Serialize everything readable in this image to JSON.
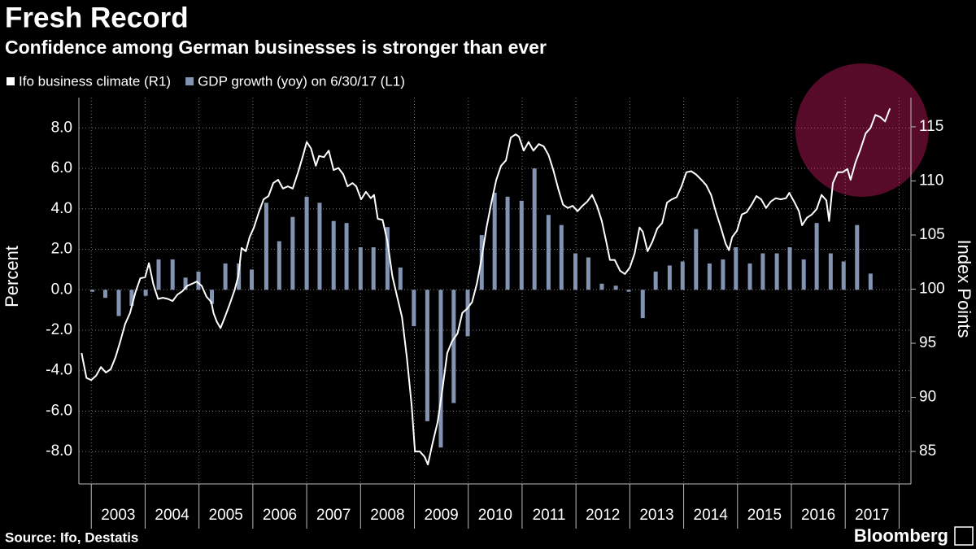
{
  "chart_data": {
    "type": "combo",
    "title": "Fresh Record",
    "subtitle": "Confidence among German businesses is stronger than ever",
    "ylabel": "Percent",
    "y2label": "Index Points",
    "source": "Source: Ifo, Destatis",
    "brand": "Bloomberg",
    "categories": [
      2003,
      2004,
      2005,
      2006,
      2007,
      2008,
      2009,
      2010,
      2011,
      2012,
      2013,
      2014,
      2015,
      2016,
      2017
    ],
    "xlim": [
      2002.77,
      2018.22
    ],
    "xticks": [
      2003,
      2004,
      2005,
      2006,
      2007,
      2008,
      2009,
      2010,
      2011,
      2012,
      2013,
      2014,
      2015,
      2016,
      2017,
      2018
    ],
    "ylim": [
      -9.6,
      9.5
    ],
    "yticks": [
      {
        "value": -8,
        "label": "-8.0"
      },
      {
        "value": -6,
        "label": "-6.0"
      },
      {
        "value": -4,
        "label": "-4.0"
      },
      {
        "value": -2,
        "label": "-2.0"
      },
      {
        "value": 0,
        "label": "0.0"
      },
      {
        "value": 2,
        "label": "2.0"
      },
      {
        "value": 4,
        "label": "4.0"
      },
      {
        "value": 6,
        "label": "6.0"
      },
      {
        "value": 8,
        "label": "8.0"
      }
    ],
    "y2lim": [
      82.0,
      117.7
    ],
    "y2ticks": [
      85,
      90,
      95,
      100,
      105,
      110,
      115
    ],
    "grid": true,
    "series": [
      {
        "name": "Ifo business climate (R1)",
        "type": "line",
        "axis": "y2",
        "color": "#ffffff",
        "x": [
          2002.82,
          2002.91,
          2003.0,
          2003.09,
          2003.18,
          2003.27,
          2003.36,
          2003.45,
          2003.54,
          2003.63,
          2003.72,
          2003.82,
          2003.91,
          2004.0,
          2004.07,
          2004.15,
          2004.24,
          2004.33,
          2004.42,
          2004.51,
          2004.6,
          2004.69,
          2004.78,
          2004.87,
          2004.96,
          2005.05,
          2005.14,
          2005.23,
          2005.27,
          2005.33,
          2005.4,
          2005.48,
          2005.57,
          2005.66,
          2005.73,
          2005.79,
          2005.87,
          2005.94,
          2006.02,
          2006.11,
          2006.2,
          2006.29,
          2006.38,
          2006.47,
          2006.56,
          2006.65,
          2006.74,
          2006.84,
          2006.93,
          2007.0,
          2007.08,
          2007.17,
          2007.23,
          2007.32,
          2007.41,
          2007.5,
          2007.59,
          2007.68,
          2007.76,
          2007.85,
          2007.92,
          2008.01,
          2008.1,
          2008.19,
          2008.25,
          2008.32,
          2008.41,
          2008.5,
          2008.59,
          2008.68,
          2008.77,
          2008.86,
          2008.95,
          2009.01,
          2009.1,
          2009.19,
          2009.25,
          2009.34,
          2009.43,
          2009.52,
          2009.61,
          2009.7,
          2009.8,
          2009.89,
          2009.98,
          2010.07,
          2010.16,
          2010.25,
          2010.34,
          2010.43,
          2010.52,
          2010.61,
          2010.7,
          2010.79,
          2010.88,
          2010.94,
          2011.03,
          2011.12,
          2011.21,
          2011.31,
          2011.4,
          2011.49,
          2011.58,
          2011.67,
          2011.76,
          2011.85,
          2011.94,
          2012.03,
          2012.12,
          2012.21,
          2012.3,
          2012.39,
          2012.48,
          2012.57,
          2012.63,
          2012.72,
          2012.82,
          2012.91,
          2013.0,
          2013.09,
          2013.18,
          2013.24,
          2013.33,
          2013.42,
          2013.51,
          2013.6,
          2013.69,
          2013.78,
          2013.87,
          2013.96,
          2014.05,
          2014.14,
          2014.23,
          2014.33,
          2014.42,
          2014.51,
          2014.6,
          2014.69,
          2014.78,
          2014.84,
          2014.9,
          2014.99,
          2015.08,
          2015.17,
          2015.26,
          2015.35,
          2015.44,
          2015.53,
          2015.62,
          2015.71,
          2015.8,
          2015.9,
          2015.96,
          2016.05,
          2016.14,
          2016.2,
          2016.29,
          2016.38,
          2016.47,
          2016.56,
          2016.65,
          2016.7,
          2016.77,
          2016.86,
          2016.95,
          2017.04,
          2017.1,
          2017.19,
          2017.28,
          2017.38,
          2017.47,
          2017.56,
          2017.65,
          2017.74,
          2017.83
        ],
        "values": [
          94.1,
          91.8,
          91.6,
          92.0,
          92.8,
          92.3,
          92.6,
          93.7,
          95.2,
          96.8,
          97.8,
          99.7,
          101.0,
          101.1,
          102.4,
          100.5,
          99.1,
          99.2,
          99.1,
          98.9,
          99.5,
          99.8,
          100.3,
          100.5,
          100.7,
          100.3,
          99.3,
          98.8,
          97.8,
          97.0,
          96.4,
          97.4,
          98.6,
          99.9,
          101.2,
          103.8,
          103.5,
          104.8,
          105.7,
          107.1,
          108.3,
          108.6,
          109.8,
          110.1,
          109.3,
          109.5,
          109.3,
          110.8,
          112.3,
          113.6,
          113.0,
          111.4,
          112.3,
          112.2,
          112.8,
          111.0,
          111.2,
          110.6,
          109.5,
          109.8,
          109.5,
          108.3,
          109.0,
          108.4,
          108.7,
          106.5,
          106.4,
          104.4,
          101.2,
          99.3,
          97.4,
          93.7,
          89.2,
          85.0,
          85.0,
          84.5,
          83.8,
          85.8,
          87.7,
          90.7,
          94.1,
          95.2,
          95.9,
          97.8,
          98.2,
          98.8,
          100.5,
          102.9,
          105.7,
          108.0,
          110.1,
          111.4,
          111.9,
          114.0,
          114.3,
          114.1,
          112.8,
          113.6,
          112.8,
          113.4,
          113.2,
          112.4,
          111.0,
          109.3,
          107.8,
          107.5,
          107.7,
          107.2,
          107.7,
          108.1,
          108.7,
          107.7,
          106.3,
          104.2,
          102.7,
          102.7,
          101.7,
          101.4,
          102.0,
          103.3,
          105.7,
          105.3,
          103.5,
          104.4,
          105.6,
          106.1,
          108.0,
          108.3,
          108.5,
          109.5,
          110.8,
          110.9,
          110.6,
          110.1,
          109.6,
          108.7,
          107.1,
          105.7,
          104.2,
          103.6,
          104.8,
          105.4,
          106.9,
          107.1,
          107.8,
          108.6,
          108.3,
          107.5,
          108.1,
          108.4,
          108.3,
          108.4,
          108.9,
          108.1,
          107.2,
          105.9,
          106.6,
          106.9,
          107.4,
          108.7,
          108.2,
          106.3,
          109.8,
          110.8,
          110.8,
          111.1,
          110.1,
          111.7,
          112.9,
          114.4,
          114.9,
          116.1,
          115.9,
          115.5,
          116.7
        ]
      },
      {
        "name": "GDP growth (yoy) on 6/30/17 (L1)",
        "type": "bar",
        "axis": "y",
        "color": "#8394b3",
        "x": [
          2003.02,
          2003.26,
          2003.51,
          2003.75,
          2004.01,
          2004.25,
          2004.51,
          2004.75,
          2004.99,
          2005.24,
          2005.49,
          2005.74,
          2005.98,
          2006.25,
          2006.49,
          2006.74,
          2007.0,
          2007.24,
          2007.5,
          2007.74,
          2008.0,
          2008.24,
          2008.5,
          2008.74,
          2008.99,
          2009.24,
          2009.49,
          2009.73,
          2009.99,
          2010.25,
          2010.49,
          2010.73,
          2010.99,
          2011.23,
          2011.49,
          2011.73,
          2011.99,
          2012.23,
          2012.48,
          2012.74,
          2012.98,
          2013.24,
          2013.48,
          2013.74,
          2013.98,
          2014.23,
          2014.48,
          2014.73,
          2014.97,
          2015.23,
          2015.47,
          2015.73,
          2015.97,
          2016.23,
          2016.47,
          2016.73,
          2016.97,
          2017.22,
          2017.47
        ],
        "values": [
          -0.1,
          -0.4,
          -1.3,
          -0.8,
          -0.3,
          1.5,
          1.5,
          0.6,
          0.9,
          -0.7,
          1.3,
          1.3,
          1.0,
          4.3,
          2.4,
          3.6,
          4.6,
          4.3,
          3.4,
          3.3,
          2.1,
          2.1,
          3.1,
          1.1,
          -1.8,
          -6.5,
          -7.8,
          -5.6,
          -2.3,
          2.7,
          4.8,
          4.6,
          4.4,
          6.0,
          3.7,
          3.2,
          1.8,
          1.6,
          0.3,
          0.2,
          -0.1,
          -1.4,
          0.9,
          1.2,
          1.4,
          3.0,
          1.3,
          1.5,
          2.1,
          1.3,
          1.8,
          1.8,
          2.1,
          1.5,
          3.3,
          1.8,
          1.4,
          3.2,
          0.8
        ]
      }
    ]
  }
}
